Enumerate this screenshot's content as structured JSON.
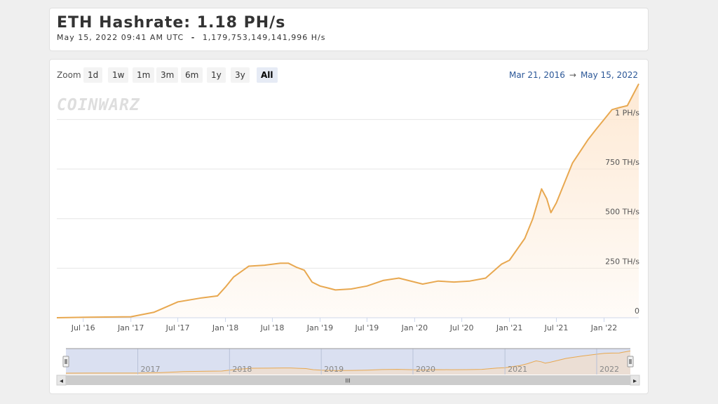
{
  "header": {
    "title": "ETH Hashrate: 1.18 PH/s",
    "subtitle_date": "May 15, 2022 09:41 AM UTC",
    "subtitle_sep": "-",
    "subtitle_value": "1,179,753,149,141,996 H/s"
  },
  "toolbar": {
    "zoom_label": "Zoom",
    "buttons": [
      "1d",
      "1w",
      "1m",
      "3m",
      "6m",
      "1y",
      "3y",
      "All"
    ],
    "active": "All",
    "range_from": "Mar 21, 2016",
    "range_arrow": "→",
    "range_to": "May 15, 2022"
  },
  "watermark": "COINWARZ",
  "navigator": {
    "labels": [
      "2017",
      "2018",
      "2019",
      "2020",
      "2021",
      "2022"
    ],
    "scroll_left": "◂",
    "scroll_right": "▸",
    "scroll_grip": "III"
  },
  "colors": {
    "line": "#e8a850",
    "area": "#fde7d0",
    "grid": "#e6e6e6",
    "navigator_mask": "#cdd6ec",
    "link": "#2b5797"
  },
  "chart_data": {
    "type": "area",
    "x_range": [
      "2016-03-21",
      "2022-05-15"
    ],
    "x_tick_labels": [
      "Jul '16",
      "Jan '17",
      "Jul '17",
      "Jan '18",
      "Jul '18",
      "Jan '19",
      "Jul '19",
      "Jan '20",
      "Jul '20",
      "Jan '21",
      "Jul '21",
      "Jan '22"
    ],
    "y_tick_values": [
      0,
      250,
      500,
      750,
      1000
    ],
    "y_tick_labels": [
      "0",
      "250 TH/s",
      "500 TH/s",
      "750 TH/s",
      "1 PH/s"
    ],
    "ylim": [
      0,
      1150
    ],
    "y_unit": "TH/s",
    "grid": true,
    "series": [
      {
        "x": [
          "2016-03-21",
          "2016-07-01",
          "2017-01-01",
          "2017-04-01",
          "2017-07-01",
          "2017-10-01",
          "2017-12-01",
          "2018-01-01",
          "2018-02-01",
          "2018-04-01",
          "2018-06-01",
          "2018-08-01",
          "2018-09-01",
          "2018-10-01",
          "2018-11-01",
          "2018-12-01",
          "2019-01-01",
          "2019-02-01",
          "2019-03-01",
          "2019-05-01",
          "2019-07-01",
          "2019-09-01",
          "2019-11-01",
          "2020-01-01",
          "2020-02-01",
          "2020-04-01",
          "2020-06-01",
          "2020-08-01",
          "2020-10-01",
          "2020-12-01",
          "2021-01-01",
          "2021-03-01",
          "2021-04-01",
          "2021-05-05",
          "2021-05-25",
          "2021-06-10",
          "2021-07-01",
          "2021-09-01",
          "2021-11-01",
          "2021-12-01",
          "2022-01-01",
          "2022-02-01",
          "2022-03-01",
          "2022-04-01",
          "2022-05-15"
        ],
        "y": [
          0,
          2,
          5,
          28,
          80,
          100,
          110,
          155,
          205,
          260,
          265,
          275,
          275,
          255,
          240,
          180,
          160,
          150,
          140,
          145,
          160,
          188,
          200,
          180,
          170,
          185,
          180,
          185,
          200,
          270,
          290,
          400,
          500,
          650,
          600,
          530,
          580,
          780,
          900,
          950,
          1000,
          1050,
          1060,
          1070,
          1180
        ]
      }
    ]
  }
}
